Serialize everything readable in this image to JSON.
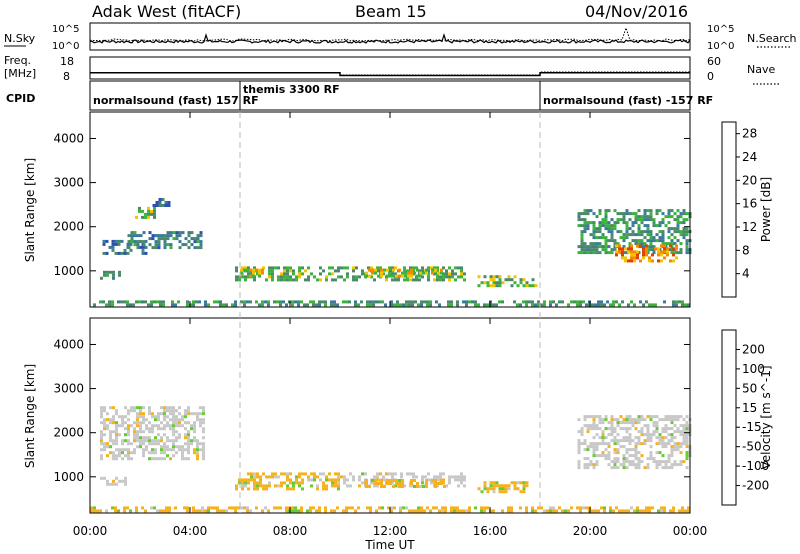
{
  "header": {
    "station": "Adak West (fitACF)",
    "beam": "Beam 15",
    "date": "04/Nov/2016"
  },
  "top_panels": {
    "nsky_label": "N.Sky",
    "nsky_ticks": [
      "10^5",
      "10^0"
    ],
    "nsearch_label": "N.Search",
    "nsearch_ticks": [
      "10^5",
      "10^0"
    ],
    "freq_label": "Freq.",
    "freq_unit": "[MHz]",
    "freq_ticks": [
      "18",
      "8"
    ],
    "nave_label": "Nave",
    "nave_ticks": [
      "60",
      "0"
    ],
    "cpid_label": "CPID",
    "cpid_segments": [
      {
        "label": "normalsound (fast) 157 RF",
        "start_h": 0,
        "end_h": 6
      },
      {
        "label": "themis 3300 RF",
        "start_h": 6,
        "end_h": 18
      },
      {
        "label": "normalsound (fast) -157 RF",
        "start_h": 18,
        "end_h": 24
      }
    ],
    "freq_steps": [
      {
        "start_h": 0,
        "end_h": 10,
        "value": 10.8
      },
      {
        "start_h": 10,
        "end_h": 18,
        "value": 9.6
      },
      {
        "start_h": 18,
        "end_h": 24,
        "value": 10.8
      }
    ]
  },
  "chart_data": [
    {
      "type": "heatmap",
      "title": "Power",
      "ylabel": "Slant Range [km]",
      "xlabel": "Time UT",
      "xlim": [
        0,
        24
      ],
      "ylim": [
        180,
        4600
      ],
      "yticks": [
        1000,
        2000,
        3000,
        4000
      ],
      "xticks": [
        "00:00",
        "04:00",
        "08:00",
        "12:00",
        "16:00",
        "20:00",
        "00:00"
      ],
      "colorbar": {
        "label": "Power [dB]",
        "ticks": [
          4,
          8,
          12,
          16,
          20,
          24,
          28
        ],
        "range": [
          0,
          30
        ],
        "colors": [
          "#1a1aff",
          "#2f4fb0",
          "#3a7a9a",
          "#4a8a6a",
          "#3cb33c",
          "#f5c400",
          "#f58a00",
          "#e04000",
          "#e00000"
        ]
      },
      "regions": [
        {
          "h0": 0.5,
          "h1": 2.2,
          "r0": 1400,
          "r1": 1700,
          "level": 8
        },
        {
          "h0": 1.5,
          "h1": 4.5,
          "r0": 1500,
          "r1": 1900,
          "level": 10
        },
        {
          "h0": 1.8,
          "h1": 2.6,
          "r0": 2200,
          "r1": 2450,
          "level": 14
        },
        {
          "h0": 2.5,
          "h1": 3.2,
          "r0": 2500,
          "r1": 2650,
          "level": 8
        },
        {
          "h0": 0.4,
          "h1": 1.2,
          "r0": 800,
          "r1": 1000,
          "level": 10
        },
        {
          "h0": 5.8,
          "h1": 15.0,
          "r0": 800,
          "r1": 1100,
          "level": 14
        },
        {
          "h0": 6.0,
          "h1": 7.2,
          "r0": 900,
          "r1": 1050,
          "level": 18
        },
        {
          "h0": 11.0,
          "h1": 14.2,
          "r0": 850,
          "r1": 1050,
          "level": 18
        },
        {
          "h0": 15.5,
          "h1": 17.8,
          "r0": 650,
          "r1": 900,
          "level": 16
        },
        {
          "h0": 0.0,
          "h1": 24.0,
          "r0": 200,
          "r1": 330,
          "level": 12
        },
        {
          "h0": 19.5,
          "h1": 24.0,
          "r0": 1400,
          "r1": 2400,
          "level": 12
        },
        {
          "h0": 21.0,
          "h1": 23.5,
          "r0": 1250,
          "r1": 1600,
          "level": 22
        }
      ]
    },
    {
      "type": "heatmap",
      "title": "Velocity",
      "ylabel": "Slant Range [km]",
      "xlabel": "Time UT",
      "xlim": [
        0,
        24
      ],
      "ylim": [
        180,
        4600
      ],
      "yticks": [
        1000,
        2000,
        3000,
        4000
      ],
      "xticks": [
        "00:00",
        "04:00",
        "08:00",
        "12:00",
        "16:00",
        "20:00",
        "00:00"
      ],
      "colorbar": {
        "label": "Velocity [m s^-1]",
        "ticks": [
          "200",
          "100",
          "50",
          "15",
          "-15",
          "-50",
          "-100",
          "-200"
        ],
        "colors": [
          "#1a2ed6",
          "#2a60a0",
          "#2e8a4a",
          "#66cc33",
          "#c8c8c8",
          "#f5b21e",
          "#f57800",
          "#f04a00",
          "#e00000"
        ]
      },
      "regions": [
        {
          "h0": 0.4,
          "h1": 4.5,
          "r0": 1400,
          "r1": 2600,
          "class": "gray"
        },
        {
          "h0": 0.4,
          "h1": 1.4,
          "r0": 800,
          "r1": 1000,
          "class": "gray"
        },
        {
          "h0": 5.8,
          "h1": 10.0,
          "r0": 750,
          "r1": 1100,
          "class": "orange"
        },
        {
          "h0": 10.0,
          "h1": 15.0,
          "r0": 800,
          "r1": 1100,
          "class": "gray"
        },
        {
          "h0": 11.0,
          "h1": 14.2,
          "r0": 750,
          "r1": 950,
          "class": "orange"
        },
        {
          "h0": 15.5,
          "h1": 17.5,
          "r0": 650,
          "r1": 900,
          "class": "orange"
        },
        {
          "h0": 0.0,
          "h1": 24.0,
          "r0": 200,
          "r1": 330,
          "class": "orange"
        },
        {
          "h0": 19.5,
          "h1": 24.0,
          "r0": 1200,
          "r1": 2400,
          "class": "gray"
        }
      ]
    }
  ],
  "colors": {
    "grid_dash": "#bbbbbb",
    "frame": "#000000",
    "background": "#ffffff"
  }
}
